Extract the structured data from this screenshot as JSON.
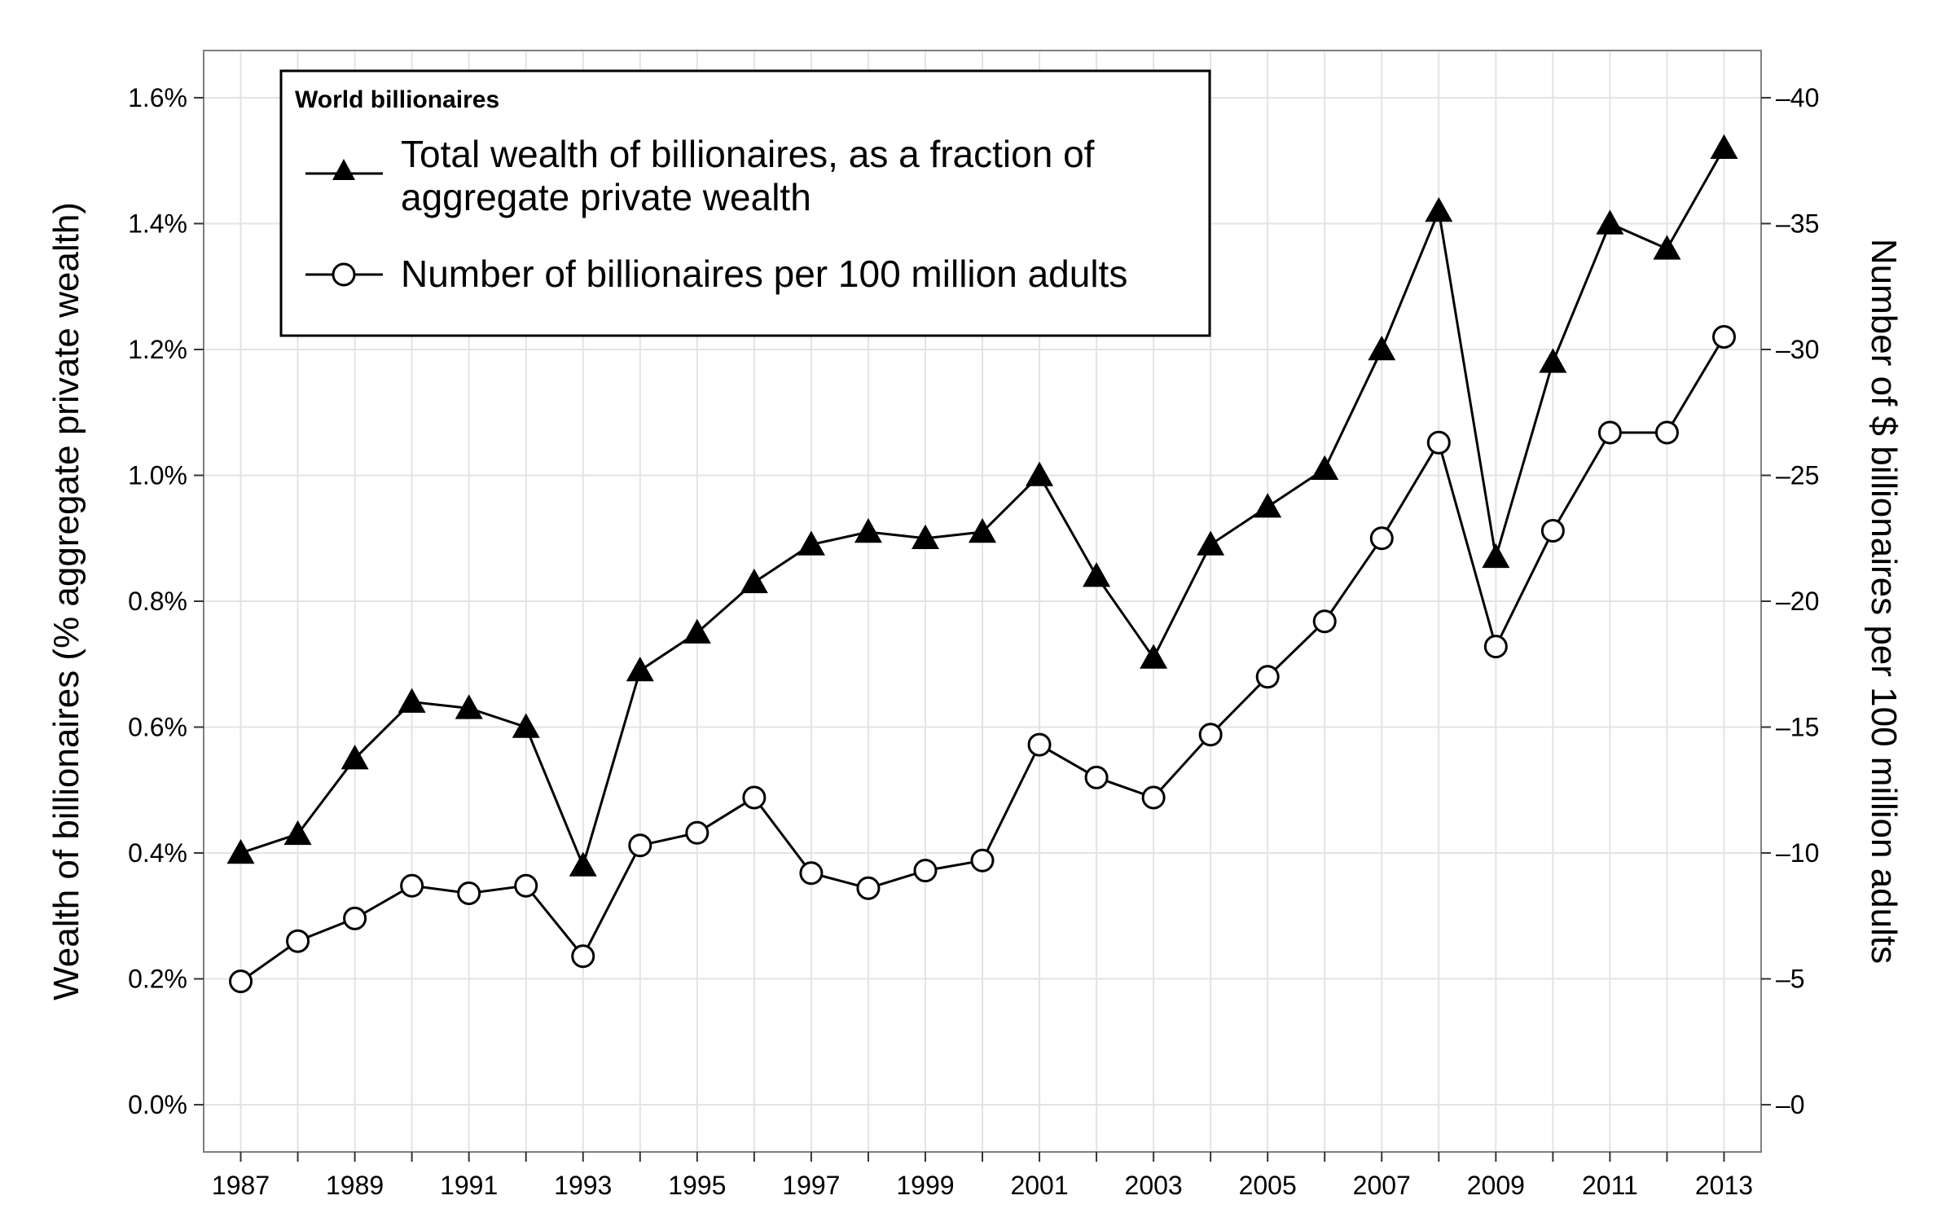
{
  "chart_data": {
    "type": "line",
    "legend_title": "World billionaires",
    "legend_position": "top-left",
    "grid": true,
    "x": [
      1987,
      1988,
      1989,
      1990,
      1991,
      1992,
      1993,
      1994,
      1995,
      1996,
      1997,
      1998,
      1999,
      2000,
      2001,
      2002,
      2003,
      2004,
      2005,
      2006,
      2007,
      2008,
      2009,
      2010,
      2011,
      2012,
      2013
    ],
    "x_tick_labels": [
      "1987",
      "1989",
      "1991",
      "1993",
      "1995",
      "1997",
      "1999",
      "2001",
      "2003",
      "2005",
      "2007",
      "2009",
      "2011",
      "2013"
    ],
    "ylabel": "Wealth of billionaires (% aggregate private wealth)",
    "ylim": [
      -0.075,
      1.675
    ],
    "y_ticks": [
      0.0,
      0.2,
      0.4,
      0.6,
      0.8,
      1.0,
      1.2,
      1.4,
      1.6
    ],
    "y_tick_labels": [
      "0.0%",
      "0.2%",
      "0.4%",
      "0.6%",
      "0.8%",
      "1.0%",
      "1.2%",
      "1.4%",
      "1.6%"
    ],
    "y2label": "Number of $ billionaires per 100 million adults",
    "y2lim": [
      -1.875,
      41.875
    ],
    "y2_ticks": [
      0,
      5,
      10,
      15,
      20,
      25,
      30,
      35,
      40
    ],
    "y2_tick_labels": [
      "0",
      "5",
      "10",
      "15",
      "20",
      "25",
      "30",
      "35",
      "40"
    ],
    "series": [
      {
        "name_lines": [
          "Total wealth of billionaires, as a fraction of",
          "aggregate private wealth"
        ],
        "axis": "left",
        "marker": "filled-triangle",
        "values": [
          0.4,
          0.43,
          0.55,
          0.64,
          0.63,
          0.6,
          0.38,
          0.69,
          0.75,
          0.83,
          0.89,
          0.91,
          0.9,
          0.91,
          1.0,
          0.84,
          0.71,
          0.89,
          0.95,
          1.01,
          1.2,
          1.42,
          0.87,
          1.18,
          1.4,
          1.36,
          1.52
        ]
      },
      {
        "name_lines": [
          "Number of billionaires per 100 million adults"
        ],
        "axis": "right",
        "marker": "open-circle",
        "values": [
          4.9,
          6.5,
          7.4,
          8.7,
          8.4,
          8.7,
          5.9,
          10.3,
          10.8,
          12.2,
          9.2,
          8.6,
          9.3,
          9.7,
          14.3,
          13.0,
          12.2,
          14.7,
          17.0,
          19.2,
          22.5,
          26.3,
          18.2,
          22.8,
          26.7,
          26.7,
          30.5
        ]
      }
    ]
  }
}
